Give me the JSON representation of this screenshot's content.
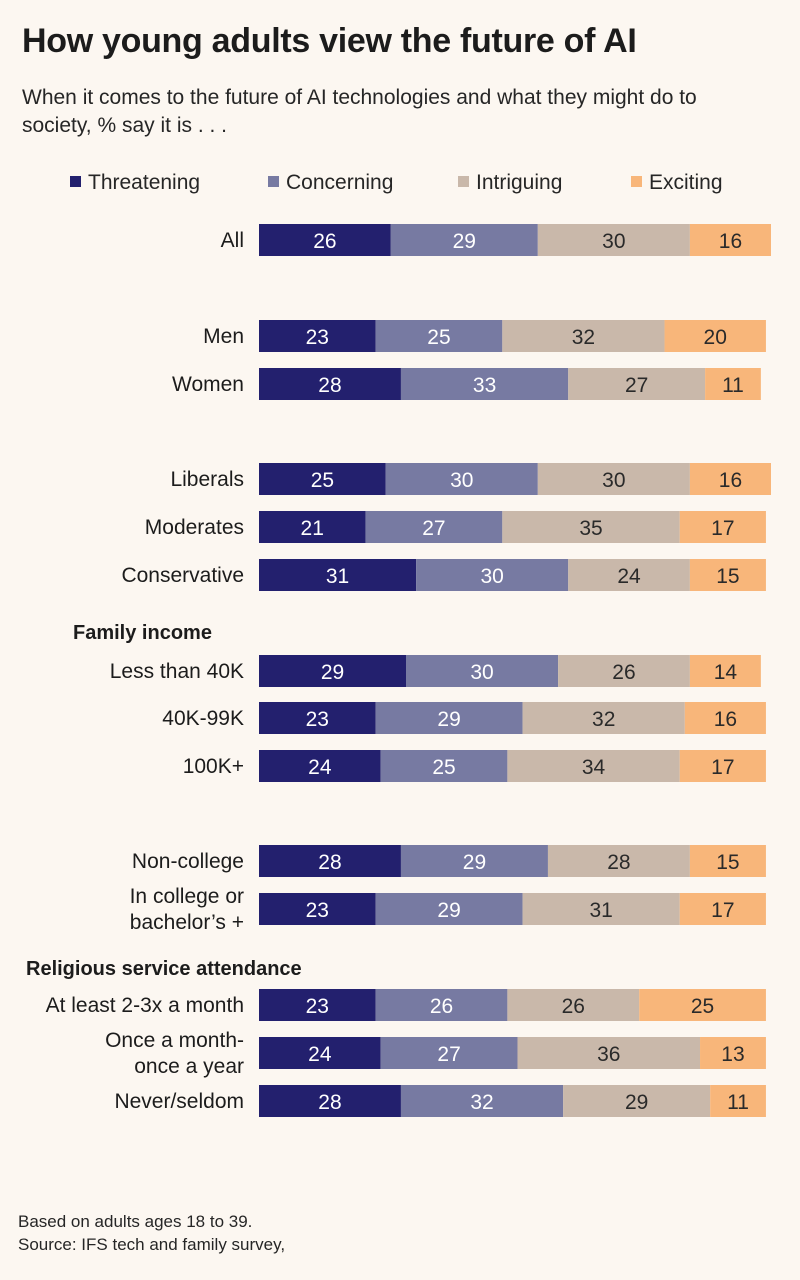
{
  "header": {
    "title": "How young adults view the future of AI",
    "subtitle": "When it comes to the future of AI technologies and what they might do to society, % say it is . . ."
  },
  "footer": {
    "line1": "Based on adults ages 18 to 39.",
    "line2": "Source: IFS tech and family survey,"
  },
  "colors": {
    "threatening": "#23206e",
    "concerning": "#777aa2",
    "intriguing": "#c9b8aa",
    "exciting": "#f8b67a"
  },
  "chart_data": {
    "type": "bar",
    "orientation": "horizontal",
    "stacked": true,
    "title": "How young adults view the future of AI",
    "subtitle": "When it comes to the future of AI technologies and what they might do to society, % say it is . . .",
    "unit": "%",
    "legend_position": "top",
    "series": [
      {
        "name": "Threatening",
        "color": "#23206e"
      },
      {
        "name": "Concerning",
        "color": "#777aa2"
      },
      {
        "name": "Intriguing",
        "color": "#c9b8aa"
      },
      {
        "name": "Exciting",
        "color": "#f8b67a"
      }
    ],
    "groups": [
      {
        "heading": "",
        "rows": [
          {
            "label": [
              "All"
            ],
            "values": [
              26,
              29,
              30,
              16
            ]
          }
        ]
      },
      {
        "heading": "",
        "rows": [
          {
            "label": [
              "Men"
            ],
            "values": [
              23,
              25,
              32,
              20
            ]
          },
          {
            "label": [
              "Women"
            ],
            "values": [
              28,
              33,
              27,
              11
            ]
          }
        ]
      },
      {
        "heading": "",
        "rows": [
          {
            "label": [
              "Liberals"
            ],
            "values": [
              25,
              30,
              30,
              16
            ]
          },
          {
            "label": [
              "Moderates"
            ],
            "values": [
              21,
              27,
              35,
              17
            ]
          },
          {
            "label": [
              "Conservative"
            ],
            "values": [
              31,
              30,
              24,
              15
            ]
          }
        ]
      },
      {
        "heading": "Family income",
        "rows": [
          {
            "label": [
              "Less than 40K"
            ],
            "values": [
              29,
              30,
              26,
              14
            ]
          },
          {
            "label": [
              "40K-99K"
            ],
            "values": [
              23,
              29,
              32,
              16
            ]
          },
          {
            "label": [
              "100K+"
            ],
            "values": [
              24,
              25,
              34,
              17
            ]
          }
        ]
      },
      {
        "heading": "",
        "rows": [
          {
            "label": [
              "Non-college"
            ],
            "values": [
              28,
              29,
              28,
              15
            ]
          },
          {
            "label": [
              "In college or",
              "bachelor’s +"
            ],
            "values": [
              23,
              29,
              31,
              17
            ]
          }
        ]
      },
      {
        "heading": "Religious service attendance",
        "rows": [
          {
            "label": [
              "At least 2-3x a month"
            ],
            "values": [
              23,
              26,
              26,
              25
            ]
          },
          {
            "label": [
              "Once a month-",
              "once a year"
            ],
            "values": [
              24,
              27,
              36,
              13
            ]
          },
          {
            "label": [
              "Never/seldom"
            ],
            "values": [
              28,
              32,
              29,
              11
            ]
          }
        ]
      }
    ]
  }
}
